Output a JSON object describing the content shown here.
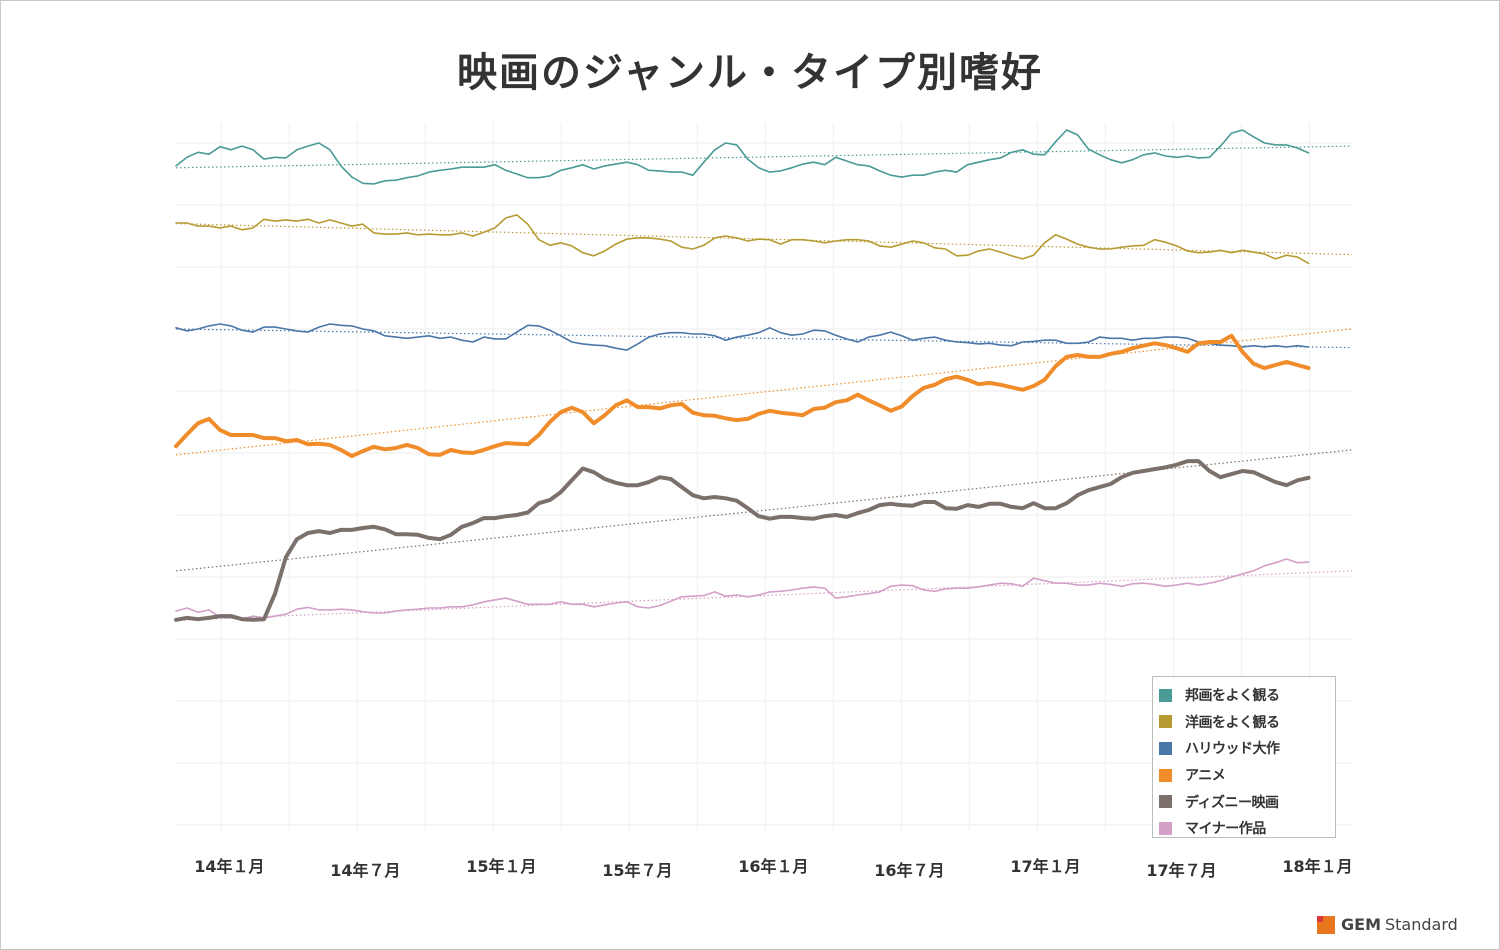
{
  "chart_data": {
    "type": "line",
    "title": "映画のジャンル・タイプ別嗜好",
    "xlabel": "",
    "ylabel": "",
    "x_start_month_index": 0,
    "x_step_months": 0.485,
    "x_range_months": [
      0,
      52
    ],
    "ylim": [
      0,
      11
    ],
    "grid": true,
    "legend_position": "bottom-right",
    "x_ticks": [
      {
        "month_index": 2,
        "label": "14年１月"
      },
      {
        "month_index": 8,
        "label": "14年７月"
      },
      {
        "month_index": 14,
        "label": "15年１月"
      },
      {
        "month_index": 20,
        "label": "15年７月"
      },
      {
        "month_index": 26,
        "label": "16年１月"
      },
      {
        "month_index": 32,
        "label": "16年７月"
      },
      {
        "month_index": 38,
        "label": "17年１月"
      },
      {
        "month_index": 44,
        "label": "17年７月"
      },
      {
        "month_index": 50,
        "label": "18年１月"
      }
    ],
    "series": [
      {
        "name": "邦画をよく観る",
        "color": "#4a9a96",
        "width": 1.6,
        "trend": [
          10.6,
          10.95
        ],
        "values": [
          10.63,
          10.77,
          10.85,
          10.82,
          10.94,
          10.89,
          10.95,
          10.89,
          10.74,
          10.77,
          10.76,
          10.89,
          10.95,
          11.0,
          10.89,
          10.63,
          10.45,
          10.35,
          10.34,
          10.39,
          10.4,
          10.44,
          10.47,
          10.53,
          10.56,
          10.58,
          10.61,
          10.61,
          10.61,
          10.65,
          10.56,
          10.5,
          10.44,
          10.44,
          10.47,
          10.56,
          10.6,
          10.65,
          10.58,
          10.63,
          10.66,
          10.69,
          10.65,
          10.56,
          10.55,
          10.53,
          10.53,
          10.48,
          10.69,
          10.89,
          11.0,
          10.97,
          10.74,
          10.6,
          10.53,
          10.55,
          10.6,
          10.66,
          10.69,
          10.65,
          10.77,
          10.71,
          10.65,
          10.63,
          10.55,
          10.48,
          10.45,
          10.48,
          10.48,
          10.53,
          10.56,
          10.53,
          10.65,
          10.69,
          10.73,
          10.76,
          10.85,
          10.89,
          10.82,
          10.81,
          11.02,
          11.21,
          11.13,
          10.9,
          10.81,
          10.73,
          10.68,
          10.73,
          10.81,
          10.84,
          10.79,
          10.77,
          10.79,
          10.76,
          10.77,
          10.95,
          11.16,
          11.21,
          11.1,
          11.0,
          10.97,
          10.97,
          10.92,
          10.84
        ]
      },
      {
        "name": "洋画をよく観る",
        "color": "#b89a32",
        "width": 1.6,
        "trend": [
          9.7,
          9.2
        ],
        "values": [
          9.71,
          9.71,
          9.66,
          9.66,
          9.63,
          9.66,
          9.6,
          9.63,
          9.77,
          9.74,
          9.76,
          9.74,
          9.77,
          9.71,
          9.76,
          9.71,
          9.66,
          9.69,
          9.55,
          9.53,
          9.53,
          9.55,
          9.52,
          9.53,
          9.52,
          9.52,
          9.55,
          9.5,
          9.56,
          9.63,
          9.79,
          9.84,
          9.69,
          9.44,
          9.35,
          9.39,
          9.34,
          9.23,
          9.18,
          9.26,
          9.37,
          9.45,
          9.47,
          9.47,
          9.45,
          9.42,
          9.32,
          9.29,
          9.35,
          9.47,
          9.5,
          9.47,
          9.42,
          9.45,
          9.44,
          9.37,
          9.44,
          9.44,
          9.42,
          9.39,
          9.42,
          9.44,
          9.44,
          9.42,
          9.34,
          9.32,
          9.37,
          9.42,
          9.39,
          9.31,
          9.29,
          9.18,
          9.19,
          9.26,
          9.29,
          9.24,
          9.18,
          9.13,
          9.19,
          9.39,
          9.52,
          9.45,
          9.37,
          9.32,
          9.29,
          9.29,
          9.32,
          9.34,
          9.35,
          9.44,
          9.4,
          9.34,
          9.26,
          9.23,
          9.24,
          9.27,
          9.23,
          9.27,
          9.24,
          9.21,
          9.13,
          9.19,
          9.16,
          9.06
        ]
      },
      {
        "name": "ハリウッド大作",
        "color": "#4a76a8",
        "width": 1.6,
        "trend": [
          8.0,
          7.7
        ],
        "values": [
          8.02,
          7.97,
          8.0,
          8.05,
          8.08,
          8.05,
          7.98,
          7.95,
          8.03,
          8.03,
          8.0,
          7.97,
          7.95,
          8.03,
          8.08,
          8.06,
          8.05,
          8.0,
          7.97,
          7.89,
          7.87,
          7.85,
          7.87,
          7.89,
          7.85,
          7.87,
          7.82,
          7.79,
          7.87,
          7.84,
          7.84,
          7.95,
          8.06,
          8.05,
          7.98,
          7.89,
          7.79,
          7.76,
          7.74,
          7.73,
          7.69,
          7.66,
          7.76,
          7.87,
          7.92,
          7.94,
          7.94,
          7.92,
          7.92,
          7.89,
          7.82,
          7.87,
          7.9,
          7.94,
          8.02,
          7.94,
          7.9,
          7.92,
          7.98,
          7.97,
          7.9,
          7.84,
          7.79,
          7.87,
          7.9,
          7.95,
          7.89,
          7.82,
          7.85,
          7.87,
          7.82,
          7.79,
          7.78,
          7.76,
          7.77,
          7.74,
          7.73,
          7.79,
          7.8,
          7.82,
          7.82,
          7.77,
          7.77,
          7.79,
          7.87,
          7.85,
          7.85,
          7.82,
          7.85,
          7.85,
          7.87,
          7.87,
          7.85,
          7.79,
          7.77,
          7.74,
          7.73,
          7.71,
          7.73,
          7.71,
          7.73,
          7.71,
          7.73,
          7.71
        ]
      },
      {
        "name": "アニメ",
        "color": "#f08c2a",
        "width": 4,
        "trend": [
          5.97,
          8.0
        ],
        "values": [
          6.11,
          6.3,
          6.48,
          6.55,
          6.37,
          6.29,
          6.29,
          6.29,
          6.24,
          6.24,
          6.19,
          6.21,
          6.14,
          6.15,
          6.13,
          6.05,
          5.95,
          6.03,
          6.1,
          6.06,
          6.08,
          6.13,
          6.08,
          5.98,
          5.97,
          6.05,
          6.01,
          6.0,
          6.05,
          6.11,
          6.16,
          6.15,
          6.14,
          6.29,
          6.5,
          6.66,
          6.73,
          6.66,
          6.48,
          6.61,
          6.77,
          6.85,
          6.74,
          6.74,
          6.72,
          6.77,
          6.79,
          6.65,
          6.61,
          6.6,
          6.56,
          6.53,
          6.55,
          6.63,
          6.68,
          6.65,
          6.63,
          6.61,
          6.71,
          6.73,
          6.82,
          6.85,
          6.94,
          6.85,
          6.77,
          6.68,
          6.75,
          6.92,
          7.05,
          7.1,
          7.19,
          7.23,
          7.18,
          7.11,
          7.13,
          7.1,
          7.06,
          7.02,
          7.08,
          7.18,
          7.4,
          7.55,
          7.58,
          7.55,
          7.55,
          7.6,
          7.63,
          7.69,
          7.73,
          7.77,
          7.74,
          7.69,
          7.63,
          7.77,
          7.79,
          7.79,
          7.89,
          7.63,
          7.44,
          7.37,
          7.42,
          7.47,
          7.42,
          7.37
        ]
      },
      {
        "name": "ディズニー映画",
        "color": "#7b706b",
        "width": 4,
        "trend": [
          4.1,
          6.05
        ],
        "values": [
          3.31,
          3.34,
          3.32,
          3.34,
          3.37,
          3.37,
          3.32,
          3.31,
          3.32,
          3.73,
          4.32,
          4.61,
          4.71,
          4.74,
          4.71,
          4.76,
          4.76,
          4.79,
          4.81,
          4.77,
          4.69,
          4.69,
          4.68,
          4.63,
          4.61,
          4.68,
          4.81,
          4.87,
          4.95,
          4.95,
          4.98,
          5.0,
          5.04,
          5.19,
          5.24,
          5.37,
          5.56,
          5.75,
          5.69,
          5.58,
          5.52,
          5.48,
          5.48,
          5.53,
          5.61,
          5.58,
          5.45,
          5.32,
          5.27,
          5.29,
          5.27,
          5.23,
          5.11,
          4.98,
          4.94,
          4.97,
          4.97,
          4.95,
          4.94,
          4.98,
          5.0,
          4.97,
          5.03,
          5.08,
          5.16,
          5.18,
          5.16,
          5.15,
          5.21,
          5.21,
          5.11,
          5.1,
          5.16,
          5.13,
          5.18,
          5.18,
          5.13,
          5.11,
          5.19,
          5.11,
          5.11,
          5.19,
          5.32,
          5.4,
          5.45,
          5.5,
          5.61,
          5.68,
          5.71,
          5.74,
          5.77,
          5.81,
          5.87,
          5.87,
          5.71,
          5.61,
          5.66,
          5.71,
          5.69,
          5.61,
          5.53,
          5.48,
          5.56,
          5.6
        ]
      },
      {
        "name": "マイナー作品",
        "color": "#d4a0c8",
        "width": 1.6,
        "trend": [
          3.3,
          4.1
        ],
        "values": [
          3.45,
          3.5,
          3.43,
          3.47,
          3.35,
          3.34,
          3.32,
          3.37,
          3.34,
          3.37,
          3.4,
          3.48,
          3.51,
          3.47,
          3.47,
          3.48,
          3.47,
          3.44,
          3.42,
          3.42,
          3.45,
          3.47,
          3.48,
          3.5,
          3.5,
          3.52,
          3.52,
          3.55,
          3.6,
          3.63,
          3.66,
          3.61,
          3.56,
          3.56,
          3.56,
          3.6,
          3.56,
          3.56,
          3.52,
          3.55,
          3.58,
          3.6,
          3.52,
          3.5,
          3.54,
          3.61,
          3.68,
          3.69,
          3.7,
          3.76,
          3.69,
          3.71,
          3.68,
          3.71,
          3.76,
          3.77,
          3.79,
          3.82,
          3.84,
          3.82,
          3.66,
          3.68,
          3.71,
          3.73,
          3.76,
          3.85,
          3.87,
          3.86,
          3.79,
          3.77,
          3.81,
          3.82,
          3.82,
          3.84,
          3.87,
          3.9,
          3.89,
          3.85,
          3.98,
          3.94,
          3.9,
          3.9,
          3.87,
          3.87,
          3.9,
          3.88,
          3.85,
          3.89,
          3.9,
          3.88,
          3.85,
          3.87,
          3.9,
          3.87,
          3.9,
          3.94,
          4.0,
          4.05,
          4.1,
          4.18,
          4.23,
          4.29,
          4.23,
          4.24
        ]
      }
    ]
  },
  "brand": {
    "bold": "GEM",
    "regular": "Standard"
  }
}
